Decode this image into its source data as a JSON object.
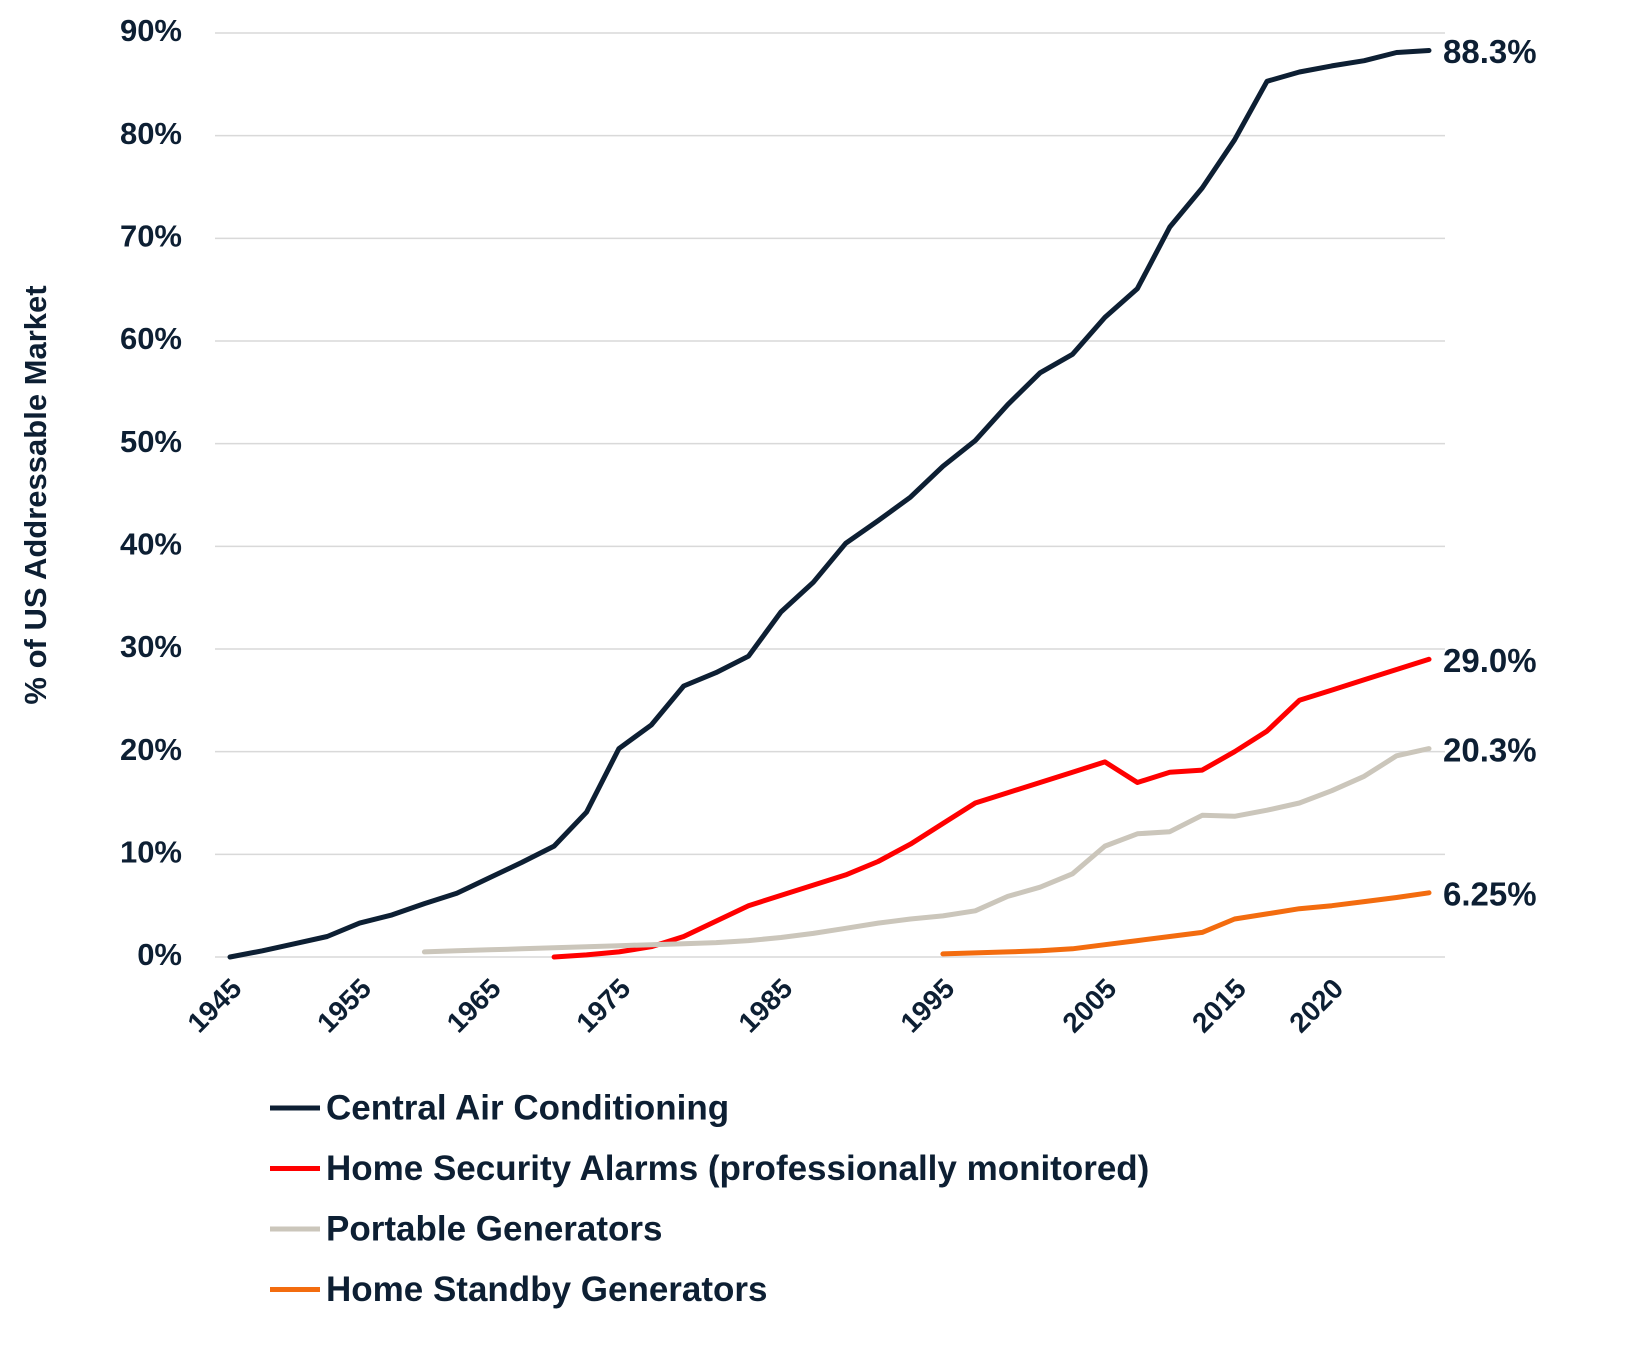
{
  "chart_data": {
    "type": "line",
    "y_label": "% of US Addressable Market",
    "categories": [
      "1945",
      null,
      null,
      null,
      "1955",
      null,
      null,
      null,
      "1965",
      null,
      null,
      null,
      "1975",
      null,
      null,
      null,
      null,
      "1985",
      null,
      null,
      null,
      null,
      "1995",
      null,
      null,
      null,
      null,
      "2005",
      null,
      null,
      null,
      "2015",
      null,
      null,
      "2020",
      null,
      null,
      null
    ],
    "ylim": [
      0,
      90
    ],
    "yticks": [
      {
        "value": 0,
        "label": "0%"
      },
      {
        "value": 10,
        "label": "10%"
      },
      {
        "value": 20,
        "label": "20%"
      },
      {
        "value": 30,
        "label": "30%"
      },
      {
        "value": 40,
        "label": "40%"
      },
      {
        "value": 50,
        "label": "50%"
      },
      {
        "value": 60,
        "label": "60%"
      },
      {
        "value": 70,
        "label": "70%"
      },
      {
        "value": 80,
        "label": "80%"
      },
      {
        "value": 90,
        "label": "90%"
      }
    ],
    "grid": true,
    "legend": "bottom",
    "series": [
      {
        "name": "Central Air Conditioning",
        "color": "#0d1f33",
        "values": [
          0,
          0.6,
          1.3,
          2.0,
          3.3,
          4.1,
          5.2,
          6.2,
          7.7,
          9.2,
          10.8,
          14.1,
          20.3,
          22.6,
          26.4,
          27.7,
          29.3,
          33.6,
          36.5,
          40.3,
          42.5,
          44.8,
          47.8,
          50.3,
          53.8,
          56.9,
          58.7,
          62.3,
          65.1,
          71.1,
          74.9,
          79.6,
          85.3,
          86.2,
          86.8,
          87.3,
          88.1,
          88.3
        ],
        "value_labels": [
          null,
          null,
          null,
          null,
          null,
          null,
          null,
          null,
          null,
          null,
          null,
          null,
          null,
          null,
          null,
          null,
          null,
          null,
          null,
          null,
          null,
          null,
          null,
          null,
          null,
          null,
          null,
          null,
          null,
          null,
          null,
          null,
          null,
          null,
          null,
          null,
          null,
          "88.3%"
        ]
      },
      {
        "name": "Home Security Alarms (professionally monitored)",
        "color": "#ff0000",
        "values": [
          null,
          null,
          null,
          null,
          null,
          null,
          null,
          null,
          null,
          null,
          0,
          0.2,
          0.5,
          1.0,
          2.0,
          3.5,
          5.0,
          6.0,
          7.0,
          8.0,
          9.3,
          11.0,
          13.0,
          15.0,
          16.0,
          17.0,
          18.0,
          19.0,
          17.0,
          18.0,
          18.2,
          20.0,
          22.0,
          25.0,
          26.0,
          27.0,
          28.0,
          29.0
        ],
        "value_labels": [
          null,
          null,
          null,
          null,
          null,
          null,
          null,
          null,
          null,
          null,
          null,
          null,
          null,
          null,
          null,
          null,
          null,
          null,
          null,
          null,
          null,
          null,
          null,
          null,
          null,
          null,
          null,
          null,
          null,
          null,
          null,
          null,
          null,
          null,
          null,
          null,
          null,
          "29.0%"
        ]
      },
      {
        "name": "Portable Generators",
        "color": "#cbc6bb",
        "values": [
          null,
          null,
          null,
          null,
          null,
          null,
          0.5,
          0.6,
          0.7,
          0.8,
          0.9,
          1.0,
          1.1,
          1.2,
          1.3,
          1.4,
          1.6,
          1.9,
          2.3,
          2.8,
          3.3,
          3.7,
          4.0,
          4.5,
          5.9,
          6.8,
          8.1,
          10.8,
          12.0,
          12.2,
          13.8,
          13.7,
          14.3,
          15.0,
          16.2,
          17.6,
          19.6,
          20.3
        ],
        "value_labels": [
          null,
          null,
          null,
          null,
          null,
          null,
          null,
          null,
          null,
          null,
          null,
          null,
          null,
          null,
          null,
          null,
          null,
          null,
          null,
          null,
          null,
          null,
          null,
          null,
          null,
          null,
          null,
          null,
          null,
          null,
          null,
          null,
          null,
          null,
          null,
          null,
          null,
          "20.3%"
        ]
      },
      {
        "name": "Home Standby Generators",
        "color": "#f36c0f",
        "values": [
          null,
          null,
          null,
          null,
          null,
          null,
          null,
          null,
          null,
          null,
          null,
          null,
          null,
          null,
          null,
          null,
          null,
          null,
          null,
          null,
          null,
          null,
          0.3,
          0.4,
          0.5,
          0.6,
          0.8,
          1.2,
          1.6,
          2.0,
          2.4,
          3.7,
          4.2,
          4.7,
          5.0,
          5.4,
          5.8,
          6.25
        ],
        "value_labels": [
          null,
          null,
          null,
          null,
          null,
          null,
          null,
          null,
          null,
          null,
          null,
          null,
          null,
          null,
          null,
          null,
          null,
          null,
          null,
          null,
          null,
          null,
          null,
          null,
          null,
          null,
          null,
          null,
          null,
          null,
          null,
          null,
          null,
          null,
          null,
          null,
          null,
          "6.25%"
        ]
      }
    ]
  }
}
